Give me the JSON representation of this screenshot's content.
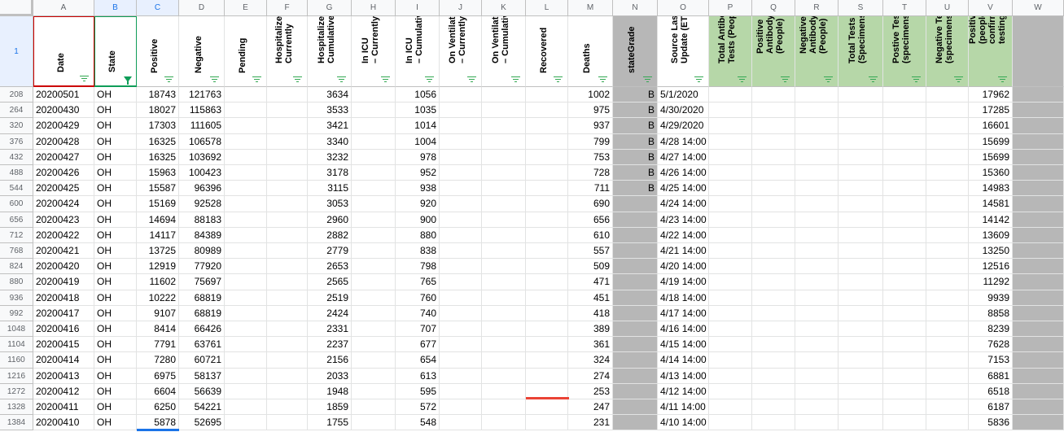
{
  "columns": [
    {
      "letter": "A",
      "label": "Date"
    },
    {
      "letter": "B",
      "label": "State"
    },
    {
      "letter": "C",
      "label": "Positive"
    },
    {
      "letter": "D",
      "label": "Negative"
    },
    {
      "letter": "E",
      "label": "Pending"
    },
    {
      "letter": "F",
      "label": "Hospitalized –\nCurrently"
    },
    {
      "letter": "G",
      "label": "Hospitalized –\nCumulative"
    },
    {
      "letter": "H",
      "label": "In ICU\n– Currently"
    },
    {
      "letter": "I",
      "label": "In ICU\n– Cumulative"
    },
    {
      "letter": "J",
      "label": "On Ventilator\n– Currently"
    },
    {
      "letter": "K",
      "label": "On Ventilator\n– Cumulative"
    },
    {
      "letter": "L",
      "label": "Recovered"
    },
    {
      "letter": "M",
      "label": "Deaths"
    },
    {
      "letter": "N",
      "label": "stateGrade"
    },
    {
      "letter": "O",
      "label": "Source Last\nUpdate (ET)"
    },
    {
      "letter": "P",
      "label": "Total Antibody\nTests (People)"
    },
    {
      "letter": "Q",
      "label": "Positive\nAntibody Tests\n(People)"
    },
    {
      "letter": "R",
      "label": "Negative\nAntibody Tests\n(People)"
    },
    {
      "letter": "S",
      "label": "Total Tests\n(Specimens)"
    },
    {
      "letter": "T",
      "label": "Postive Tests\n(specimens)"
    },
    {
      "letter": "U",
      "label": "Negative Tests\n(specimens)"
    },
    {
      "letter": "V",
      "label": "Positive Cases\n(people,\nconfirmed by\ntesting)"
    },
    {
      "letter": "W",
      "label": ""
    }
  ],
  "header_row_number": "1",
  "rows": [
    {
      "n": "208",
      "v": [
        "20200501",
        "OH",
        "18743",
        "121763",
        "",
        "",
        "3634",
        "",
        "1056",
        "",
        "",
        "",
        "1002",
        "B",
        "5/1/2020",
        "",
        "",
        "",
        "",
        "",
        "",
        "17962",
        ""
      ]
    },
    {
      "n": "264",
      "v": [
        "20200430",
        "OH",
        "18027",
        "115863",
        "",
        "",
        "3533",
        "",
        "1035",
        "",
        "",
        "",
        "975",
        "B",
        "4/30/2020",
        "",
        "",
        "",
        "",
        "",
        "",
        "17285",
        ""
      ]
    },
    {
      "n": "320",
      "v": [
        "20200429",
        "OH",
        "17303",
        "111605",
        "",
        "",
        "3421",
        "",
        "1014",
        "",
        "",
        "",
        "937",
        "B",
        "4/29/2020",
        "",
        "",
        "",
        "",
        "",
        "",
        "16601",
        ""
      ]
    },
    {
      "n": "376",
      "v": [
        "20200428",
        "OH",
        "16325",
        "106578",
        "",
        "",
        "3340",
        "",
        "1004",
        "",
        "",
        "",
        "799",
        "B",
        "4/28 14:00",
        "",
        "",
        "",
        "",
        "",
        "",
        "15699",
        ""
      ]
    },
    {
      "n": "432",
      "v": [
        "20200427",
        "OH",
        "16325",
        "103692",
        "",
        "",
        "3232",
        "",
        "978",
        "",
        "",
        "",
        "753",
        "B",
        "4/27 14:00",
        "",
        "",
        "",
        "",
        "",
        "",
        "15699",
        ""
      ]
    },
    {
      "n": "488",
      "v": [
        "20200426",
        "OH",
        "15963",
        "100423",
        "",
        "",
        "3178",
        "",
        "952",
        "",
        "",
        "",
        "728",
        "B",
        "4/26 14:00",
        "",
        "",
        "",
        "",
        "",
        "",
        "15360",
        ""
      ]
    },
    {
      "n": "544",
      "v": [
        "20200425",
        "OH",
        "15587",
        "96396",
        "",
        "",
        "3115",
        "",
        "938",
        "",
        "",
        "",
        "711",
        "B",
        "4/25 14:00",
        "",
        "",
        "",
        "",
        "",
        "",
        "14983",
        ""
      ]
    },
    {
      "n": "600",
      "v": [
        "20200424",
        "OH",
        "15169",
        "92528",
        "",
        "",
        "3053",
        "",
        "920",
        "",
        "",
        "",
        "690",
        "",
        "4/24 14:00",
        "",
        "",
        "",
        "",
        "",
        "",
        "14581",
        ""
      ]
    },
    {
      "n": "656",
      "v": [
        "20200423",
        "OH",
        "14694",
        "88183",
        "",
        "",
        "2960",
        "",
        "900",
        "",
        "",
        "",
        "656",
        "",
        "4/23 14:00",
        "",
        "",
        "",
        "",
        "",
        "",
        "14142",
        ""
      ]
    },
    {
      "n": "712",
      "v": [
        "20200422",
        "OH",
        "14117",
        "84389",
        "",
        "",
        "2882",
        "",
        "880",
        "",
        "",
        "",
        "610",
        "",
        "4/22 14:00",
        "",
        "",
        "",
        "",
        "",
        "",
        "13609",
        ""
      ]
    },
    {
      "n": "768",
      "v": [
        "20200421",
        "OH",
        "13725",
        "80989",
        "",
        "",
        "2779",
        "",
        "838",
        "",
        "",
        "",
        "557",
        "",
        "4/21 14:00",
        "",
        "",
        "",
        "",
        "",
        "",
        "13250",
        ""
      ]
    },
    {
      "n": "824",
      "v": [
        "20200420",
        "OH",
        "12919",
        "77920",
        "",
        "",
        "2653",
        "",
        "798",
        "",
        "",
        "",
        "509",
        "",
        "4/20 14:00",
        "",
        "",
        "",
        "",
        "",
        "",
        "12516",
        ""
      ]
    },
    {
      "n": "880",
      "v": [
        "20200419",
        "OH",
        "11602",
        "75697",
        "",
        "",
        "2565",
        "",
        "765",
        "",
        "",
        "",
        "471",
        "",
        "4/19 14:00",
        "",
        "",
        "",
        "",
        "",
        "",
        "11292",
        ""
      ]
    },
    {
      "n": "936",
      "v": [
        "20200418",
        "OH",
        "10222",
        "68819",
        "",
        "",
        "2519",
        "",
        "760",
        "",
        "",
        "",
        "451",
        "",
        "4/18 14:00",
        "",
        "",
        "",
        "",
        "",
        "",
        "9939",
        ""
      ]
    },
    {
      "n": "992",
      "v": [
        "20200417",
        "OH",
        "9107",
        "68819",
        "",
        "",
        "2424",
        "",
        "740",
        "",
        "",
        "",
        "418",
        "",
        "4/17 14:00",
        "",
        "",
        "",
        "",
        "",
        "",
        "8858",
        ""
      ]
    },
    {
      "n": "1048",
      "v": [
        "20200416",
        "OH",
        "8414",
        "66426",
        "",
        "",
        "2331",
        "",
        "707",
        "",
        "",
        "",
        "389",
        "",
        "4/16 14:00",
        "",
        "",
        "",
        "",
        "",
        "",
        "8239",
        ""
      ]
    },
    {
      "n": "1104",
      "v": [
        "20200415",
        "OH",
        "7791",
        "63761",
        "",
        "",
        "2237",
        "",
        "677",
        "",
        "",
        "",
        "361",
        "",
        "4/15 14:00",
        "",
        "",
        "",
        "",
        "",
        "",
        "7628",
        ""
      ]
    },
    {
      "n": "1160",
      "v": [
        "20200414",
        "OH",
        "7280",
        "60721",
        "",
        "",
        "2156",
        "",
        "654",
        "",
        "",
        "",
        "324",
        "",
        "4/14 14:00",
        "",
        "",
        "",
        "",
        "",
        "",
        "7153",
        ""
      ]
    },
    {
      "n": "1216",
      "v": [
        "20200413",
        "OH",
        "6975",
        "58137",
        "",
        "",
        "2033",
        "",
        "613",
        "",
        "",
        "",
        "274",
        "",
        "4/13 14:00",
        "",
        "",
        "",
        "",
        "",
        "",
        "6881",
        ""
      ]
    },
    {
      "n": "1272",
      "v": [
        "20200412",
        "OH",
        "6604",
        "56639",
        "",
        "",
        "1948",
        "",
        "595",
        "",
        "",
        "",
        "253",
        "",
        "4/12 14:00",
        "",
        "",
        "",
        "",
        "",
        "",
        "6518",
        ""
      ]
    },
    {
      "n": "1328",
      "v": [
        "20200411",
        "OH",
        "6250",
        "54221",
        "",
        "",
        "1859",
        "",
        "572",
        "",
        "",
        "",
        "247",
        "",
        "4/11 14:00",
        "",
        "",
        "",
        "",
        "",
        "",
        "6187",
        ""
      ]
    },
    {
      "n": "1384",
      "v": [
        "20200410",
        "OH",
        "5878",
        "52695",
        "",
        "",
        "1755",
        "",
        "548",
        "",
        "",
        "",
        "231",
        "",
        "4/10 14:00",
        "",
        "",
        "",
        "",
        "",
        "",
        "5836",
        ""
      ]
    }
  ],
  "colors": {
    "header_green": "#b6d7a8",
    "grade_gray": "#b7b7b7",
    "filter_green": "#34a853",
    "selection_blue": "#1a73e8",
    "date_border_red": "#cc0000",
    "state_border_green": "#0f9d58",
    "recovered_marker": "#ea4335"
  }
}
